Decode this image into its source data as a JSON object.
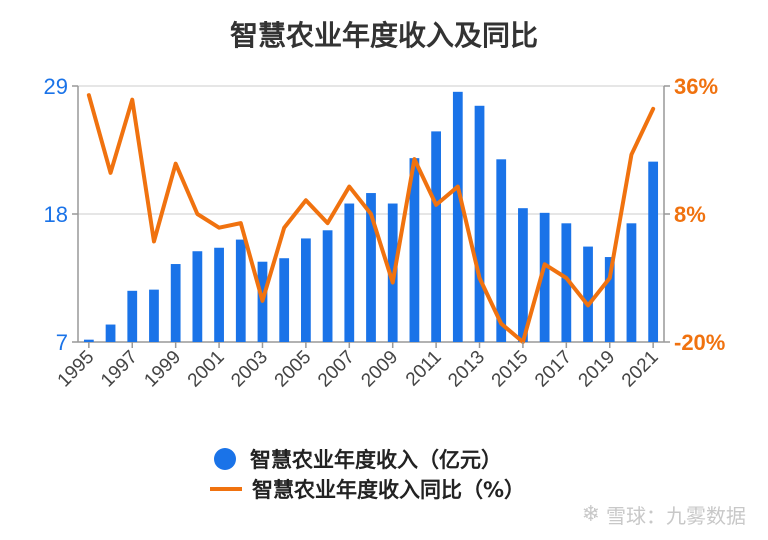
{
  "title": "智慧农业年度收入及同比",
  "colors": {
    "bar": "#1a73e8",
    "line": "#f0720f",
    "left_axis": "#1a73e8",
    "right_axis": "#f0720f",
    "grid": "#dddddd"
  },
  "legend": {
    "bar_label": "智慧农业年度收入（亿元）",
    "line_label": "智慧农业年度收入同比（%）"
  },
  "watermark": "雪球：九雾数据",
  "chart_data": {
    "type": "bar",
    "title": "智慧农业年度收入及同比",
    "categories": [
      "1995",
      "1996",
      "1997",
      "1998",
      "1999",
      "2000",
      "2001",
      "2002",
      "2003",
      "2004",
      "2005",
      "2006",
      "2007",
      "2008",
      "2009",
      "2010",
      "2011",
      "2012",
      "2013",
      "2014",
      "2015",
      "2016",
      "2017",
      "2018",
      "2019",
      "2020",
      "2021"
    ],
    "x_tick_labels": [
      "1995",
      "1997",
      "1999",
      "2001",
      "2003",
      "2005",
      "2007",
      "2009",
      "2011",
      "2013",
      "2015",
      "2017",
      "2019",
      "2021"
    ],
    "series": [
      {
        "name": "智慧农业年度收入（亿元）",
        "type": "bar",
        "axis": "left",
        "values": [
          7.2,
          8.5,
          11.4,
          11.5,
          13.7,
          14.8,
          15.1,
          15.8,
          13.9,
          14.2,
          15.9,
          16.6,
          18.9,
          19.8,
          18.9,
          22.8,
          25.1,
          28.5,
          27.3,
          22.7,
          18.5,
          18.1,
          17.2,
          15.2,
          14.3,
          17.2,
          22.5
        ]
      },
      {
        "name": "智慧农业年度收入同比（%）",
        "type": "line",
        "axis": "right",
        "values": [
          34,
          17,
          33,
          2,
          19,
          8,
          5,
          6,
          -11,
          5,
          11,
          6,
          14,
          8,
          -7,
          20,
          10,
          14,
          -6,
          -16,
          -20,
          -3,
          -6,
          -12,
          -6,
          21,
          31
        ]
      }
    ],
    "left_axis": {
      "ylim": [
        7,
        29
      ],
      "ticks": [
        "7",
        "18",
        "29"
      ]
    },
    "right_axis": {
      "ylim": [
        -20,
        36
      ],
      "ticks": [
        "-20%",
        "8%",
        "36%"
      ]
    },
    "grid": true,
    "legend_position": "bottom"
  }
}
